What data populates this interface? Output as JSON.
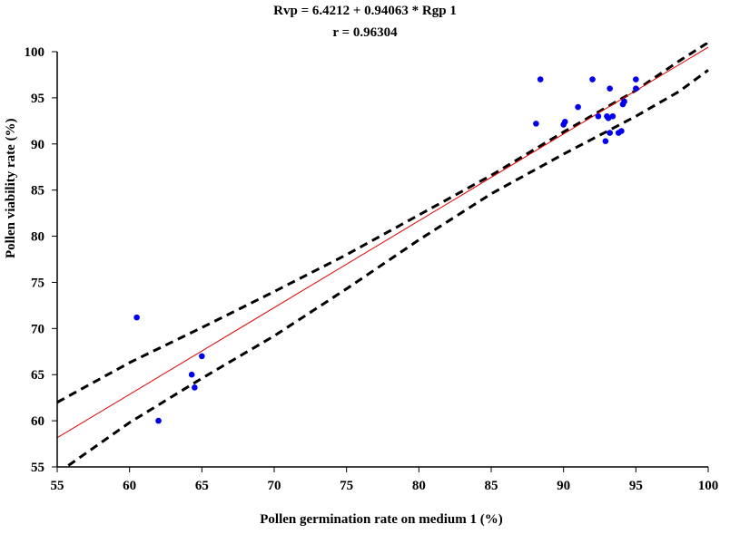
{
  "chart_data": {
    "type": "scatter",
    "title": "Rvp = 6.4212 + 0.94063 * Rgp 1",
    "subtitle": "r = 0.96304",
    "xlabel": "Pollen germination rate on medium 1 (%)",
    "ylabel": "Pollen viability rate  (%)",
    "xlim": [
      55,
      100
    ],
    "ylim": [
      55,
      100
    ],
    "xticks": [
      55,
      60,
      65,
      70,
      75,
      80,
      85,
      90,
      95,
      100
    ],
    "yticks": [
      55,
      60,
      65,
      70,
      75,
      80,
      85,
      90,
      95,
      100
    ],
    "grid": false,
    "points": {
      "x": [
        60.5,
        62.0,
        64.3,
        64.5,
        65.0,
        88.1,
        88.4,
        90.0,
        90.1,
        91.0,
        92.0,
        92.4,
        92.9,
        93.0,
        93.1,
        93.2,
        93.2,
        93.4,
        93.8,
        94.0,
        94.1,
        94.2,
        95.0,
        95.0
      ],
      "y": [
        71.2,
        60.0,
        65.0,
        63.6,
        67.0,
        92.2,
        97.0,
        92.1,
        92.4,
        94.0,
        97.0,
        93.0,
        90.3,
        93.0,
        92.8,
        91.2,
        96.0,
        93.0,
        91.2,
        91.4,
        94.3,
        94.6,
        96.0,
        97.0
      ]
    },
    "regression": {
      "intercept": 6.4212,
      "slope": 0.94063,
      "color": "#e00000"
    },
    "confidence_band": {
      "x": [
        55,
        60,
        65,
        70,
        75,
        80,
        85,
        90,
        95,
        98,
        100
      ],
      "upper": [
        62.0,
        66.3,
        70.1,
        74.0,
        78.0,
        82.3,
        86.6,
        91.3,
        95.8,
        99.0,
        101.0
      ],
      "lower": [
        54.3,
        59.8,
        64.6,
        69.2,
        74.3,
        79.6,
        84.6,
        88.9,
        93.0,
        95.7,
        98.0
      ],
      "style": "dashed",
      "color": "#000000"
    },
    "point_color": "#0000ee"
  }
}
